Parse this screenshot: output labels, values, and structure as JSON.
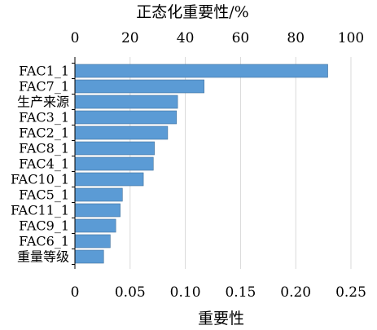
{
  "chart_data": {
    "type": "bar",
    "orientation": "horizontal",
    "categories": [
      "FAC1_1",
      "FAC7_1",
      "生产来源",
      "FAC3_1",
      "FAC2_1",
      "FAC8_1",
      "FAC4_1",
      "FAC10_1",
      "FAC5_1",
      "FAC11_1",
      "FAC9_1",
      "FAC6_1",
      "重量等级"
    ],
    "series": [
      {
        "values": [
          0.229,
          0.117,
          0.093,
          0.092,
          0.084,
          0.072,
          0.071,
          0.062,
          0.043,
          0.041,
          0.037,
          0.032,
          0.026
        ]
      }
    ],
    "x_axis": {
      "label": "重要性",
      "range": [
        0,
        0.25
      ],
      "ticks": [
        "0",
        "0.05",
        "0.10",
        "0.15",
        "0.20",
        "0.25"
      ],
      "tick_values": [
        0,
        0.05,
        0.1,
        0.15,
        0.2,
        0.25
      ]
    },
    "x2_axis": {
      "label": "正态化重要性/%",
      "range": [
        0,
        100
      ],
      "ticks": [
        "0",
        "20",
        "40",
        "60",
        "80",
        "100"
      ],
      "tick_values": [
        0,
        20,
        40,
        60,
        80,
        100
      ]
    },
    "grid": true,
    "bar_color": "#5b9bd5",
    "bar_edge_color": "#41719c",
    "grid_color": "#d9d9d9",
    "axis_color": "#000000"
  }
}
